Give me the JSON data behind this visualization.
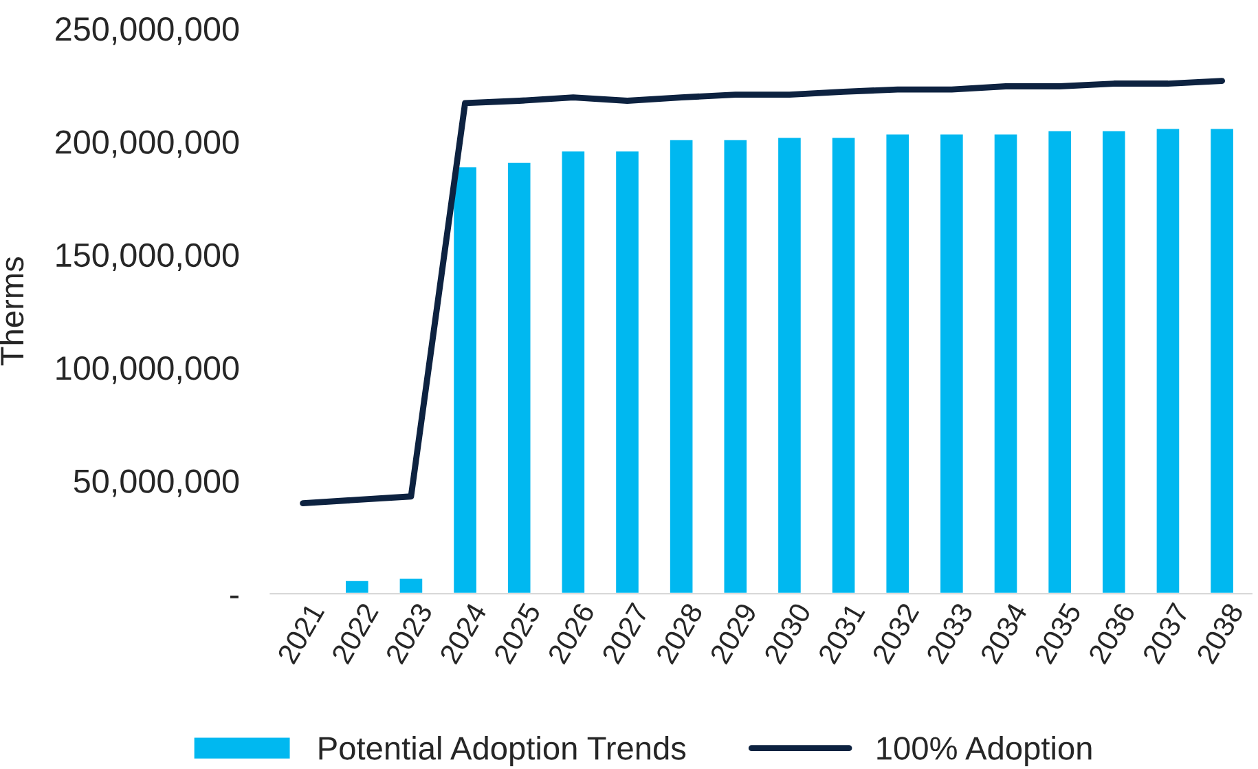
{
  "chart_data": {
    "type": "bar",
    "ylabel": "Therms",
    "categories": [
      "2021",
      "2022",
      "2023",
      "2024",
      "2025",
      "2026",
      "2027",
      "2028",
      "2029",
      "2030",
      "2031",
      "2032",
      "2033",
      "2034",
      "2035",
      "2036",
      "2037",
      "2038"
    ],
    "series": [
      {
        "name": "Potential Adoption Trends",
        "color": "#00b8f0",
        "values": [
          null,
          6000000,
          7000000,
          189000000,
          191000000,
          196000000,
          196000000,
          201000000,
          201000000,
          202000000,
          202000000,
          203500000,
          203500000,
          203500000,
          205000000,
          205000000,
          206000000,
          206000000
        ]
      },
      {
        "name": "100% Adoption",
        "type": "line",
        "color": "#0d2240",
        "values": [
          40000000,
          41500000,
          43000000,
          217000000,
          218000000,
          219500000,
          218000000,
          219500000,
          220700000,
          220700000,
          222000000,
          223000000,
          223000000,
          224400000,
          224400000,
          225600000,
          225600000,
          226800000
        ]
      }
    ],
    "ylim": [
      0,
      250000000
    ],
    "yticks": [
      {
        "value": 0,
        "label": "-"
      },
      {
        "value": 50000000,
        "label": "50,000,000"
      },
      {
        "value": 100000000,
        "label": "100,000,000"
      },
      {
        "value": 150000000,
        "label": "150,000,000"
      },
      {
        "value": 200000000,
        "label": "200,000,000"
      },
      {
        "value": 250000000,
        "label": "250,000,000"
      }
    ],
    "grid": false,
    "legend": "bottom"
  }
}
